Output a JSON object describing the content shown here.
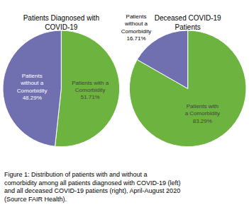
{
  "chart_data": [
    {
      "type": "pie",
      "title": "Patients Diagnosed with\nCOVID-19",
      "categories": [
        "Patients with a\nComorbidity",
        "Patients\nwithout a\nComorbidity"
      ],
      "values": [
        51.71,
        48.29
      ],
      "value_labels": [
        "51.71%",
        "48.29%"
      ],
      "colors": [
        "#6db33f",
        "#7070b0"
      ],
      "data_labels": true
    },
    {
      "type": "pie",
      "title": "Deceased COVID-19\nPatients",
      "categories": [
        "Patients with\na Comorbidity",
        "Patients\nwithout a\nComorbidity"
      ],
      "values": [
        83.29,
        16.71
      ],
      "value_labels": [
        "83.29%",
        "16.71%"
      ],
      "colors": [
        "#6db33f",
        "#7070b0"
      ],
      "data_labels": true
    }
  ],
  "caption": "Figure 1: Distribution of patients with and without a\ncomorbidity among all patients diagnosed with COVID-19 (left)\nand all deceased COVID-19 patients (right), April-August 2020\n(Source FAIR Health)."
}
